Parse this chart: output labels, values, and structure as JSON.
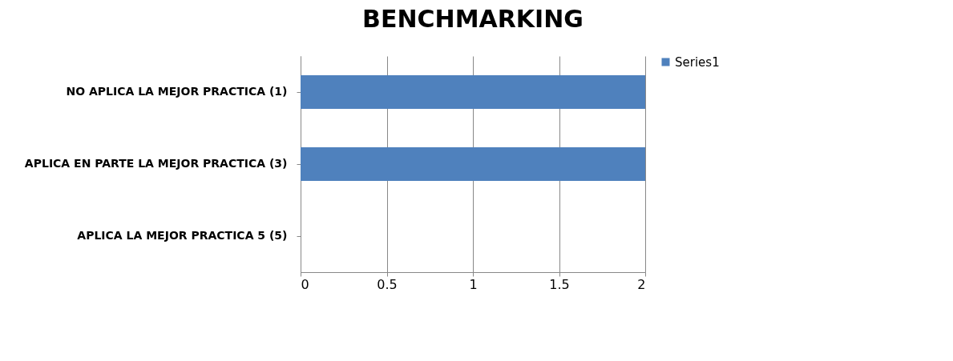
{
  "chart_data": {
    "type": "bar",
    "title": "BENCHMARKING",
    "orientation": "horizontal",
    "categories": [
      "NO APLICA LA MEJOR PRACTICA (1)",
      "APLICA EN PARTE LA MEJOR PRACTICA (3)",
      "APLICA LA MEJOR PRACTICA 5 (5)"
    ],
    "series": [
      {
        "name": "Series1",
        "color": "#4f81bd",
        "values": [
          2,
          2,
          0
        ]
      }
    ],
    "xlim": [
      0,
      2
    ],
    "xticks": [
      0,
      0.5,
      1,
      1.5,
      2
    ],
    "grid": "x",
    "legend": "right"
  }
}
